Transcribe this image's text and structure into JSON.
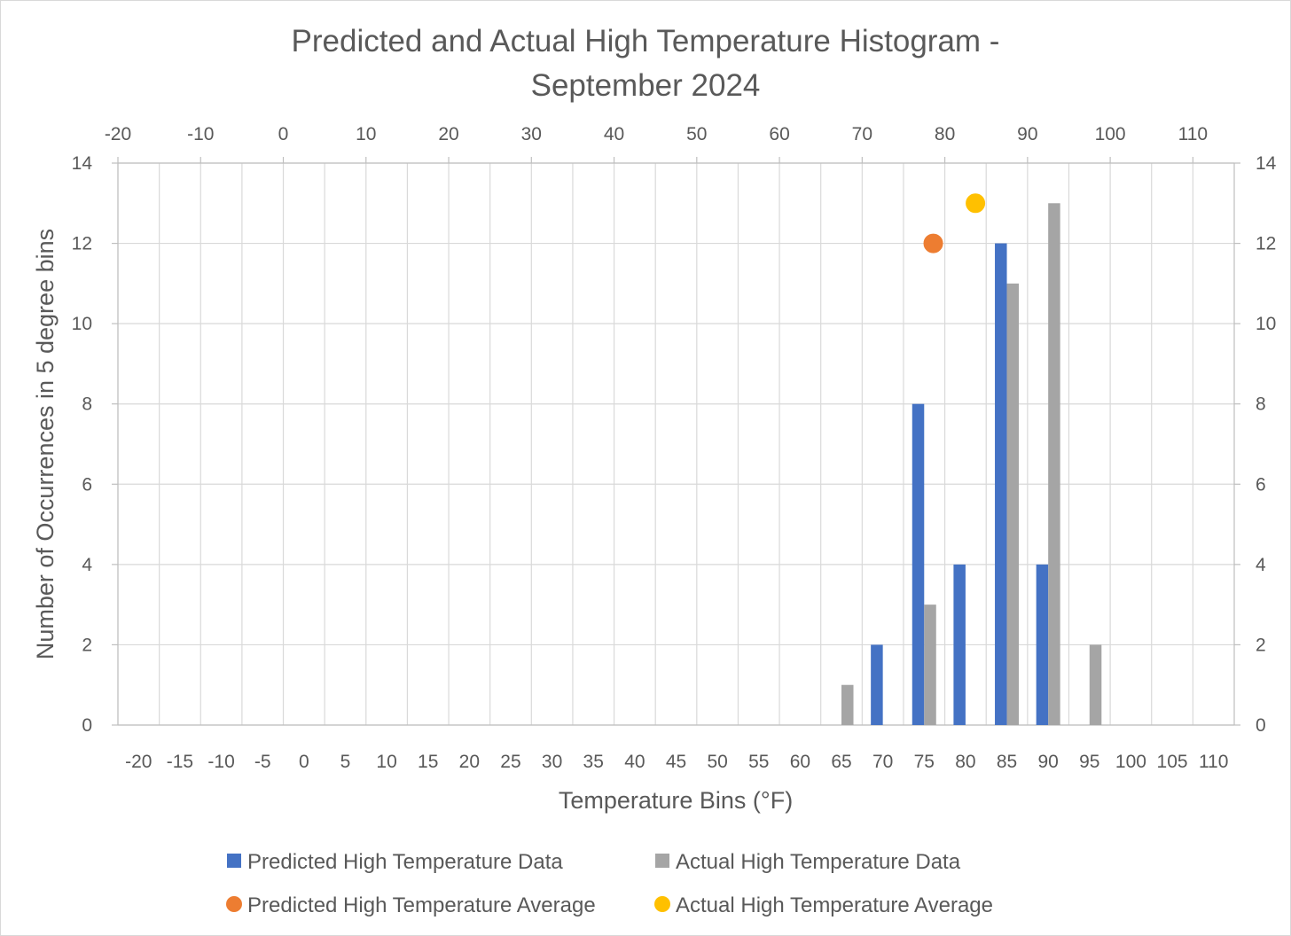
{
  "chart_data": {
    "type": "bar",
    "title_line1": "Predicted and Actual High Temperature Histogram -",
    "title_line2": "September 2024",
    "xlabel": "Temperature Bins (°F)",
    "ylabel": "Number of Occurrences in 5 degree bins",
    "ylim": [
      0,
      14
    ],
    "y_ticks": [
      "0",
      "2",
      "4",
      "6",
      "8",
      "10",
      "12",
      "14"
    ],
    "y2_ticks": [
      "0",
      "2",
      "4",
      "6",
      "8",
      "10",
      "12",
      "14"
    ],
    "categories": [
      "-20",
      "-15",
      "-10",
      "-5",
      "0",
      "5",
      "10",
      "15",
      "20",
      "25",
      "30",
      "35",
      "40",
      "45",
      "50",
      "55",
      "60",
      "65",
      "70",
      "75",
      "80",
      "85",
      "90",
      "95",
      "100",
      "105",
      "110"
    ],
    "top_axis": {
      "range": [
        -20,
        115
      ],
      "ticks": [
        "-20",
        "-10",
        "0",
        "10",
        "20",
        "30",
        "40",
        "50",
        "60",
        "70",
        "80",
        "90",
        "100",
        "110"
      ]
    },
    "series": [
      {
        "name": "Predicted High Temperature Data",
        "kind": "bar",
        "color": "#4472C4",
        "values": [
          0,
          0,
          0,
          0,
          0,
          0,
          0,
          0,
          0,
          0,
          0,
          0,
          0,
          0,
          0,
          0,
          0,
          0,
          2,
          8,
          4,
          12,
          4,
          0,
          0,
          0,
          0
        ]
      },
      {
        "name": "Actual High Temperature Data",
        "kind": "bar",
        "color": "#A5A5A5",
        "values": [
          0,
          0,
          0,
          0,
          0,
          0,
          0,
          0,
          0,
          0,
          0,
          0,
          0,
          0,
          0,
          0,
          0,
          1,
          0,
          3,
          0,
          11,
          13,
          2,
          0,
          0,
          0
        ]
      },
      {
        "name": "Predicted High Temperature Average",
        "kind": "scatter",
        "color": "#ED7D31",
        "points": [
          {
            "x": 78.6,
            "y": 12
          }
        ]
      },
      {
        "name": "Actual High Temperature Average",
        "kind": "scatter",
        "color": "#FFC000",
        "points": [
          {
            "x": 83.7,
            "y": 13
          }
        ]
      }
    ],
    "legend_position": "bottom",
    "grid": true
  }
}
